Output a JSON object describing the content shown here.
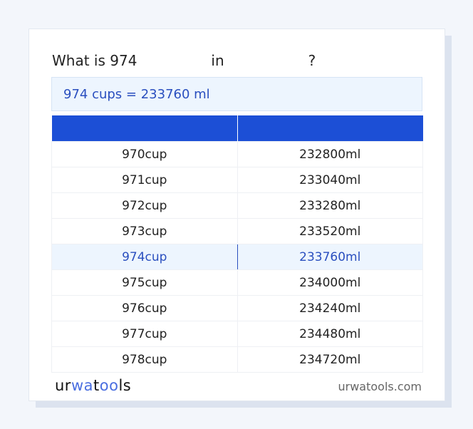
{
  "title": {
    "prefix": "What is 974",
    "mid": "in",
    "suffix": "?"
  },
  "result": "974 cups = 233760 ml",
  "table": {
    "headers": [
      "",
      ""
    ],
    "rows": [
      [
        "970cup",
        "232800ml"
      ],
      [
        "971cup",
        "233040ml"
      ],
      [
        "972cup",
        "233280ml"
      ],
      [
        "973cup",
        "233520ml"
      ],
      [
        "974cup",
        "233760ml"
      ],
      [
        "975cup",
        "234000ml"
      ],
      [
        "976cup",
        "234240ml"
      ],
      [
        "977cup",
        "234480ml"
      ],
      [
        "978cup",
        "234720ml"
      ]
    ],
    "highlighted_row": 4
  },
  "footer": {
    "logo": "urwatools",
    "site": "urwatools.com"
  },
  "colors": {
    "accent": "#1c4fd6",
    "highlight_bg": "#edf5fe",
    "highlight_text": "#2a4fbf"
  }
}
